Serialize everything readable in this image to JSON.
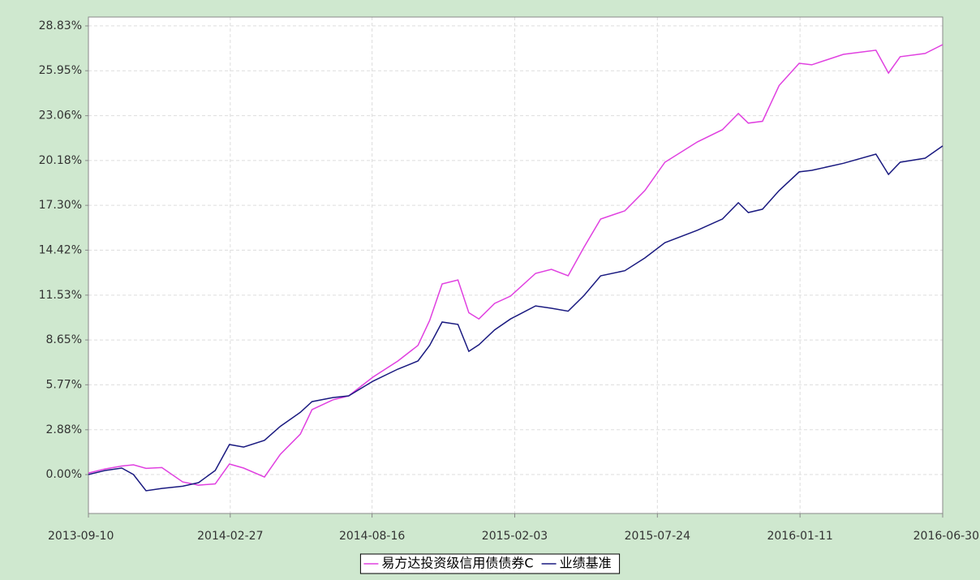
{
  "chart_data": {
    "type": "line",
    "x": [
      "2013-09-10",
      "2013-09-30",
      "2013-10-20",
      "2013-11-03",
      "2013-11-18",
      "2013-12-07",
      "2014-01-01",
      "2014-01-20",
      "2014-02-09",
      "2014-02-26",
      "2014-03-15",
      "2014-04-09",
      "2014-04-28",
      "2014-05-22",
      "2014-06-05",
      "2014-06-30",
      "2014-07-19",
      "2014-08-17",
      "2014-09-16",
      "2014-10-10",
      "2014-10-24",
      "2014-11-08",
      "2014-11-27",
      "2014-12-10",
      "2014-12-22",
      "2015-01-10",
      "2015-01-29",
      "2015-02-28",
      "2015-03-19",
      "2015-04-08",
      "2015-04-27",
      "2015-05-17",
      "2015-06-15",
      "2015-07-09",
      "2015-08-02",
      "2015-09-10",
      "2015-10-10",
      "2015-10-29",
      "2015-11-10",
      "2015-11-27",
      "2015-12-17",
      "2016-01-10",
      "2016-01-25",
      "2016-03-03",
      "2016-04-11",
      "2016-04-26",
      "2016-05-10",
      "2016-06-09",
      "2016-06-30"
    ],
    "series": [
      {
        "name": "易方达投资级信用债债券C",
        "color": "#e040e0",
        "values": [
          0.1,
          0.36,
          0.55,
          0.63,
          0.4,
          0.45,
          -0.47,
          -0.68,
          -0.6,
          0.68,
          0.42,
          -0.16,
          1.3,
          2.6,
          4.17,
          4.8,
          5.06,
          6.26,
          7.3,
          8.3,
          9.9,
          12.25,
          12.5,
          10.4,
          10.0,
          11.0,
          11.47,
          12.93,
          13.19,
          12.77,
          14.6,
          16.42,
          16.95,
          18.25,
          20.07,
          21.38,
          22.16,
          23.2,
          22.58,
          22.7,
          25.0,
          26.43,
          26.33,
          27.0,
          27.27,
          25.8,
          26.85,
          27.06,
          27.63
        ]
      },
      {
        "name": "业绩基准",
        "color": "#1a1a80",
        "values": [
          0,
          0.26,
          0.42,
          0,
          -1.04,
          -0.89,
          -0.75,
          -0.52,
          0.26,
          1.93,
          1.77,
          2.2,
          3.1,
          4.0,
          4.69,
          4.95,
          5.06,
          6.0,
          6.78,
          7.3,
          8.3,
          9.8,
          9.65,
          7.92,
          8.34,
          9.3,
          10.0,
          10.84,
          10.69,
          10.5,
          11.5,
          12.77,
          13.1,
          13.92,
          14.9,
          15.7,
          16.42,
          17.47,
          16.84,
          17.05,
          18.25,
          19.45,
          19.55,
          20.0,
          20.59,
          19.29,
          20.07,
          20.33,
          21.12
        ]
      }
    ],
    "xlim": [
      "2013-09-10",
      "2016-06-30"
    ],
    "xticks": [
      "2013-09-10",
      "2014-02-27",
      "2014-08-16",
      "2015-02-03",
      "2015-07-24",
      "2016-01-11",
      "2016-06-30"
    ],
    "ylim": [
      -2.5,
      29.4
    ],
    "yticks": [
      {
        "value": 0,
        "label": "0.00%"
      },
      {
        "value": 2.88,
        "label": "2.88%"
      },
      {
        "value": 5.77,
        "label": "5.77%"
      },
      {
        "value": 8.65,
        "label": "8.65%"
      },
      {
        "value": 11.53,
        "label": "11.53%"
      },
      {
        "value": 14.42,
        "label": "14.42%"
      },
      {
        "value": 17.3,
        "label": "17.30%"
      },
      {
        "value": 20.18,
        "label": "20.18%"
      },
      {
        "value": 23.06,
        "label": "23.06%"
      },
      {
        "value": 25.95,
        "label": "25.95%"
      },
      {
        "value": 28.83,
        "label": "28.83%"
      }
    ],
    "grid": true,
    "legend": "bottom"
  }
}
